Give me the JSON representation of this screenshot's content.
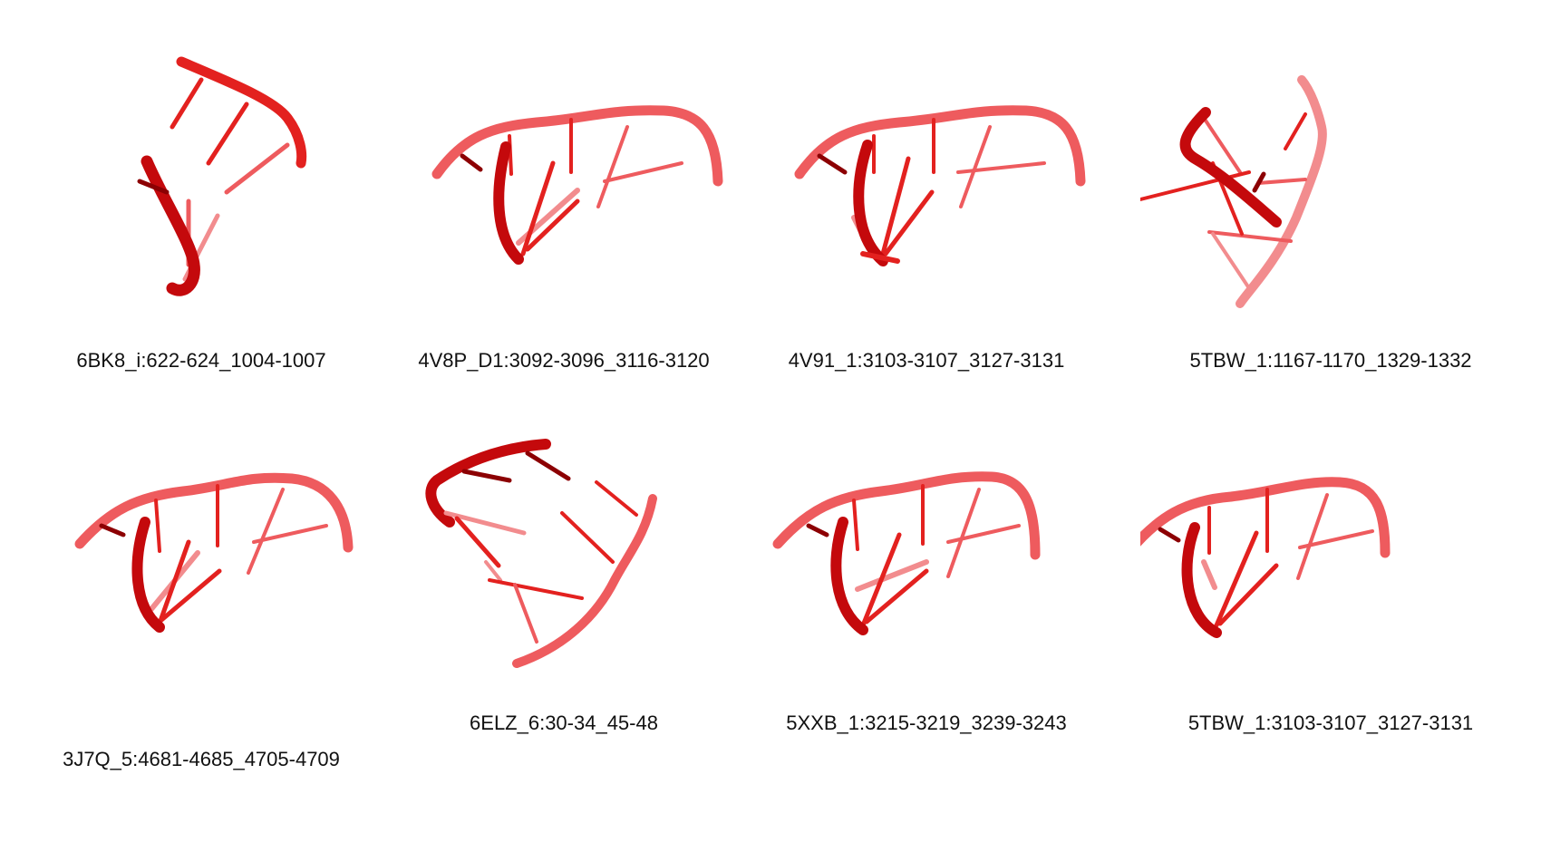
{
  "colors": {
    "strand": "#e3211f",
    "strand_dark": "#c4090c",
    "strand_light": "#ee5b5e",
    "strand_faded": "#f28c8e",
    "caption_text": "#111111",
    "background": "#ffffff"
  },
  "panels": [
    {
      "id": "p1",
      "caption": "6BK8_i:622-624_1004-1007"
    },
    {
      "id": "p2",
      "caption": "4V8P_D1:3092-3096_3116-3120"
    },
    {
      "id": "p3",
      "caption": "4V91_1:3103-3107_3127-3131"
    },
    {
      "id": "p4",
      "caption": "5TBW_1:1167-1170_1329-1332"
    },
    {
      "id": "p5",
      "caption": "3J7Q_5:4681-4685_4705-4709"
    },
    {
      "id": "p6",
      "caption": "6ELZ_6:30-34_45-48"
    },
    {
      "id": "p7",
      "caption": "5XXB_1:3215-3219_3239-3243"
    },
    {
      "id": "p8",
      "caption": "5TBW_1:3103-3107_3127-3131"
    }
  ]
}
